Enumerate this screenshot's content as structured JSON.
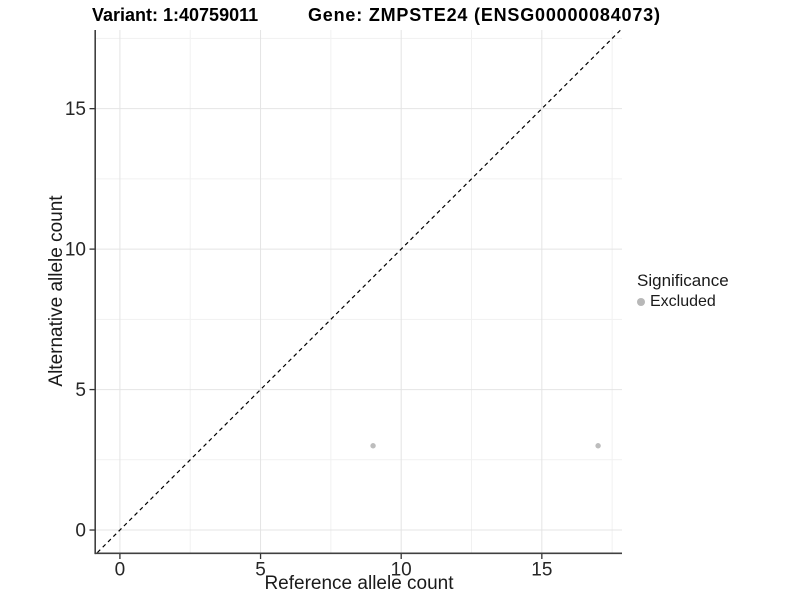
{
  "chart_data": {
    "type": "scatter",
    "titles": {
      "left": "Variant: 1:40759011",
      "right": "Gene: ZMPSTE24 (ENSG00000084073)"
    },
    "xlabel": "Reference allele count",
    "ylabel": "Alternative allele count",
    "xlim": [
      -0.85,
      17.85
    ],
    "ylim": [
      -0.8,
      17.8
    ],
    "x_major_ticks": [
      0,
      5,
      10,
      15
    ],
    "y_major_ticks": [
      0,
      5,
      10,
      15
    ],
    "x_minor_ticks": [
      2.5,
      7.5,
      12.5,
      17.5
    ],
    "y_minor_ticks": [
      2.5,
      7.5,
      12.5,
      17.5
    ],
    "grid": "major+minor",
    "reference_line": {
      "kind": "identity y=x",
      "style": "dashed",
      "color": "#000000"
    },
    "series": [
      {
        "name": "Excluded",
        "color": "#bdbdbd",
        "marker": "circle",
        "points": [
          [
            9,
            3
          ],
          [
            17,
            3
          ]
        ]
      }
    ],
    "legend": {
      "position": "right",
      "title": "Significance",
      "items": [
        {
          "label": "Excluded",
          "color": "#b8b8b8"
        }
      ]
    },
    "colors": {
      "background": "#ffffff",
      "grid_major": "#e4e4e4",
      "grid_minor": "#f1f1f1",
      "axis_line": "#404040",
      "tick_mark": "#333333",
      "tick_text": "#262626",
      "title_text": "#000000",
      "point": "#bdbdbd"
    }
  }
}
